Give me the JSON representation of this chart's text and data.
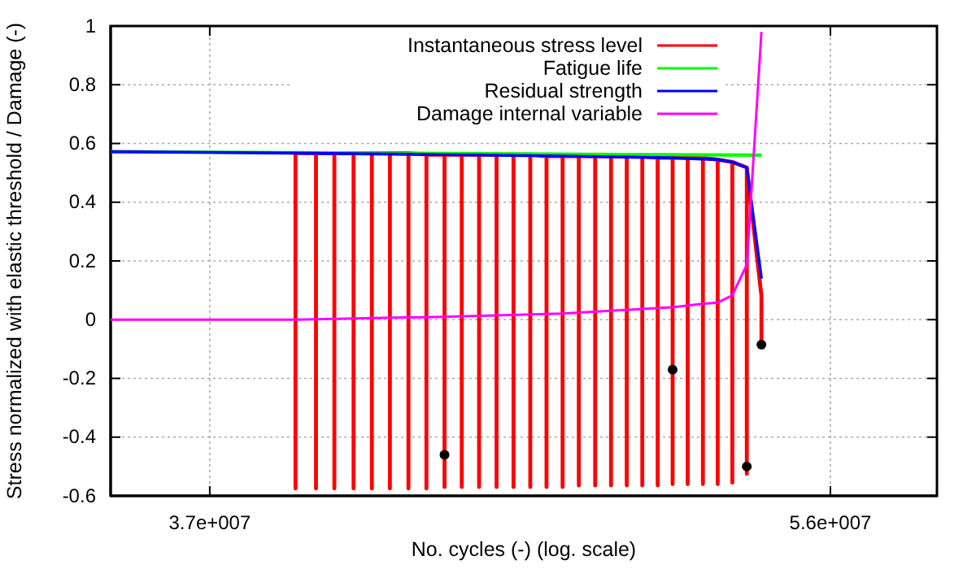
{
  "chart_data": {
    "type": "line",
    "xlabel": "No. cycles (-) (log. scale)",
    "ylabel": "Stress normalized with elastic threshold / Damage (-)",
    "log": "x",
    "grid": true,
    "legend": "top",
    "xlim": [
      34630000,
      60130000
    ],
    "xticks": [
      {
        "value": 37000000,
        "label": "3.7e+007"
      },
      {
        "value": 56000000,
        "label": "5.6e+007"
      }
    ],
    "ylim": [
      -0.6,
      1
    ],
    "yticks": [
      -0.6,
      -0.4,
      -0.2,
      0,
      0.2,
      0.4,
      0.6,
      0.8,
      1
    ],
    "series": [
      {
        "name": "Instantaneous stress level",
        "color": "#ff0000",
        "x": [
          39180000,
          39180000,
          39180000,
          39720000,
          39720000,
          39720000,
          40210000,
          40210000,
          40210000,
          40730000,
          40730000,
          40730000,
          41230000,
          41230000,
          41230000,
          41730000,
          41730000,
          41730000,
          42250000,
          42250000,
          42250000,
          42760000,
          42760000,
          42760000,
          43280000,
          43280000,
          43280000,
          43780000,
          43780000,
          43780000,
          44290000,
          44290000,
          44290000,
          44810000,
          44810000,
          44810000,
          45320000,
          45320000,
          45320000,
          45830000,
          45830000,
          45830000,
          46330000,
          46330000,
          46330000,
          46830000,
          46830000,
          46830000,
          47340000,
          47340000,
          47340000,
          47860000,
          47860000,
          47860000,
          48370000,
          48370000,
          48370000,
          48880000,
          48880000,
          48880000,
          49390000,
          49390000,
          49390000,
          49900000,
          49900000,
          49900000,
          50400000,
          50400000,
          50400000,
          50910000,
          50910000,
          50910000,
          51430000,
          51430000,
          51430000,
          51940000,
          51940000,
          51940000,
          52450000,
          52450000,
          52450000,
          52960000,
          52960000,
          52960000,
          53480000,
          53480000
        ],
        "values": [
          0.567,
          -0.575,
          0.567,
          0.567,
          -0.575,
          0.567,
          0.567,
          -0.575,
          0.567,
          0.567,
          -0.575,
          0.567,
          0.567,
          -0.575,
          0.567,
          0.567,
          -0.575,
          0.567,
          0.567,
          -0.575,
          0.567,
          0.562,
          -0.575,
          0.562,
          0.562,
          -0.57,
          0.562,
          0.562,
          -0.57,
          0.562,
          0.562,
          -0.57,
          0.562,
          0.562,
          -0.57,
          0.562,
          0.562,
          -0.57,
          0.562,
          0.562,
          -0.57,
          0.562,
          0.557,
          -0.57,
          0.557,
          0.557,
          -0.57,
          0.557,
          0.557,
          -0.565,
          0.557,
          0.557,
          -0.565,
          0.557,
          0.557,
          -0.565,
          0.557,
          0.557,
          -0.565,
          0.557,
          0.557,
          -0.565,
          0.557,
          0.551,
          -0.565,
          0.551,
          0.551,
          -0.56,
          0.551,
          0.551,
          -0.56,
          0.551,
          0.551,
          -0.56,
          0.551,
          0.545,
          -0.56,
          0.545,
          0.537,
          -0.555,
          0.537,
          0.518,
          -0.525,
          0.518,
          0.08,
          -0.085
        ]
      },
      {
        "name": "Fatigue life",
        "color": "#00ff00",
        "x": [
          34630000,
          53480000
        ],
        "values": [
          0.572,
          0.56
        ]
      },
      {
        "name": "Residual strength",
        "color": "#0000ff",
        "x": [
          34630000,
          39180000,
          43280000,
          46830000,
          50400000,
          51940000,
          52450000,
          52960000,
          53480000
        ],
        "values": [
          0.572,
          0.567,
          0.562,
          0.557,
          0.551,
          0.545,
          0.537,
          0.518,
          0.14
        ]
      },
      {
        "name": "Damage internal variable",
        "color": "#ff00ff",
        "x": [
          34630000,
          39180000,
          43280000,
          46830000,
          50400000,
          51430000,
          51940000,
          52450000,
          52960000,
          53480000
        ],
        "values": [
          0,
          0,
          0.01,
          0.021,
          0.042,
          0.054,
          0.058,
          0.083,
          0.187,
          0.98
        ]
      },
      {
        "type": "scatter",
        "color": "#000000",
        "x": [
          43280000,
          50400000,
          52960000,
          53480000
        ],
        "values": [
          -0.46,
          -0.17,
          -0.5,
          -0.085
        ]
      }
    ]
  }
}
